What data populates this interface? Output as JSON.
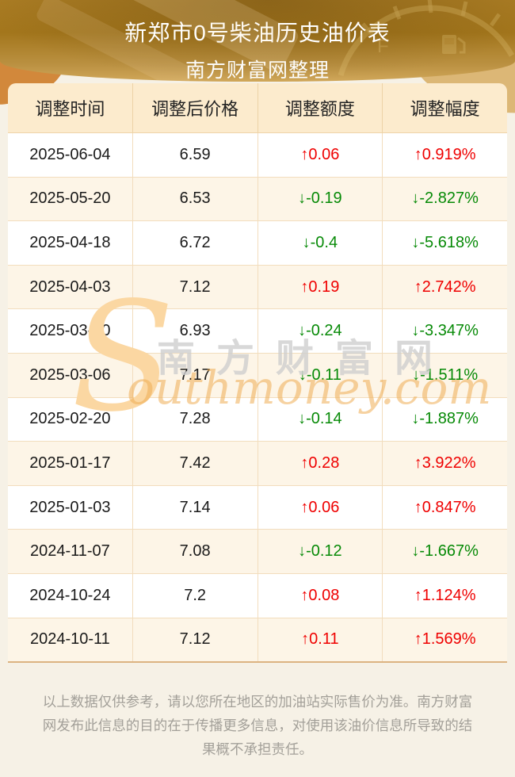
{
  "chart_data": {
    "type": "table",
    "title": "新郑市0号柴油历史油价表",
    "subtitle": "南方财富网整理",
    "columns": [
      "调整时间",
      "调整后价格",
      "调整额度",
      "调整幅度"
    ],
    "rows": [
      [
        "2025-06-04",
        "6.59",
        "↑0.06",
        "↑0.919%"
      ],
      [
        "2025-05-20",
        "6.53",
        "↓-0.19",
        "↓-2.827%"
      ],
      [
        "2025-04-18",
        "6.72",
        "↓-0.4",
        "↓-5.618%"
      ],
      [
        "2025-04-03",
        "7.12",
        "↑0.19",
        "↑2.742%"
      ],
      [
        "2025-03-20",
        "6.93",
        "↓-0.24",
        "↓-3.347%"
      ],
      [
        "2025-03-06",
        "7.17",
        "↓-0.11",
        "↓-1.511%"
      ],
      [
        "2025-02-20",
        "7.28",
        "↓-0.14",
        "↓-1.887%"
      ],
      [
        "2025-01-17",
        "7.42",
        "↑0.28",
        "↑3.922%"
      ],
      [
        "2025-01-03",
        "7.14",
        "↑0.06",
        "↑0.847%"
      ],
      [
        "2024-11-07",
        "7.08",
        "↓-0.12",
        "↓-1.667%"
      ],
      [
        "2024-10-24",
        "7.2",
        "↑0.08",
        "↑1.124%"
      ],
      [
        "2024-10-11",
        "7.12",
        "↑0.11",
        "↑1.569%"
      ]
    ]
  },
  "banner": {
    "gauge_full_label": "F"
  },
  "watermark": {
    "swoosh": "S",
    "cjk": "南方财富网",
    "en": "outhmoney.com"
  },
  "footer": {
    "disclaimer": "以上数据仅供参考，请以您所在地区的加油站实际售价为准。南方财富网发布此信息的目的在于传播更多信息，对使用该油价信息所导致的结果概不承担责任。"
  },
  "colors": {
    "increase_red": "#ef0000",
    "decrease_green": "#078a07",
    "banner_gold": "#a3761c",
    "header_cream": "#fcebcd",
    "row_alt_cream": "#fdf5e7",
    "page_background": "#f6f1e6",
    "watermark_gold": "#f0ae55"
  }
}
